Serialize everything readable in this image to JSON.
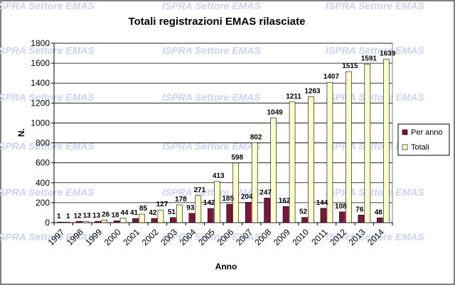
{
  "watermark": "ISPRA Settore EMAS",
  "colors": {
    "per_anno": "#7b1739",
    "totali": "#ffffcc",
    "plot_bg": "#ffffff",
    "watermark": "#cdd3ee"
  },
  "chart_data": {
    "type": "bar",
    "title": "Totali registrazioni EMAS rilasciate",
    "xlabel": "Anno",
    "ylabel": "N.",
    "ylim": [
      0,
      1800
    ],
    "yticks": [
      0,
      200,
      400,
      600,
      800,
      1000,
      1200,
      1400,
      1600,
      1800
    ],
    "grid": true,
    "legend_position": "right",
    "categories": [
      "1997",
      "1998",
      "1999",
      "2000",
      "2001",
      "2002",
      "2003",
      "2004",
      "2005",
      "2006",
      "2007",
      "2008",
      "2009",
      "2010",
      "2011",
      "2012",
      "2013",
      "2014"
    ],
    "series": [
      {
        "name": "Per anno",
        "values": [
          1,
          12,
          13,
          18,
          41,
          42,
          51,
          93,
          142,
          185,
          204,
          247,
          162,
          52,
          144,
          108,
          76,
          48
        ]
      },
      {
        "name": "Totali",
        "values": [
          1,
          13,
          26,
          44,
          85,
          127,
          178,
          271,
          413,
          598,
          802,
          1049,
          1211,
          1263,
          1407,
          1515,
          1591,
          1639
        ]
      }
    ]
  }
}
